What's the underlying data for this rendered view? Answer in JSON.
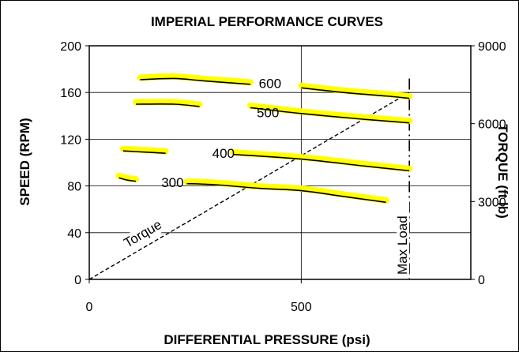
{
  "chart_data": {
    "type": "line",
    "title": "IMPERIAL PERFORMANCE CURVES",
    "xlabel": "DIFFERENTIAL PRESSURE (psi)",
    "ylabel": "SPEED (RPM)",
    "y2label": "TORQUE (ft lb)",
    "xlim": [
      0,
      900
    ],
    "ylim": [
      0,
      200
    ],
    "y2lim": [
      0,
      9000
    ],
    "x_ticks": [
      "0",
      "500"
    ],
    "x_tick_values": [
      0,
      500
    ],
    "y_ticks": [
      "0",
      "40",
      "80",
      "120",
      "160",
      "200"
    ],
    "y_tick_values": [
      0,
      40,
      80,
      120,
      160,
      200
    ],
    "y2_ticks": [
      "0",
      "3000",
      "6000",
      "9000"
    ],
    "y2_tick_values": [
      0,
      3000,
      6000,
      9000
    ],
    "grid": true,
    "series": [
      {
        "name": "600",
        "label_at": [
          400,
          168
        ],
        "segments": [
          [
            [
              120,
              171
            ],
            [
              200,
              172
            ],
            [
              270,
              170
            ],
            [
              380,
              167
            ]
          ],
          [
            [
              500,
              164
            ],
            [
              600,
              160
            ],
            [
              700,
              157
            ],
            [
              755,
              155
            ]
          ]
        ]
      },
      {
        "name": "500",
        "label_at": [
          395,
          143
        ],
        "segments": [
          [
            [
              110,
              150
            ],
            [
              200,
              150
            ],
            [
              260,
              148
            ]
          ],
          [
            [
              380,
              147
            ],
            [
              500,
              142
            ],
            [
              650,
              137
            ],
            [
              755,
              134
            ]
          ]
        ]
      },
      {
        "name": "400",
        "label_at": [
          290,
          108
        ],
        "segments": [
          [
            [
              80,
              110
            ],
            [
              130,
              109
            ],
            [
              180,
              108
            ]
          ],
          [
            [
              340,
              107
            ],
            [
              500,
              103
            ],
            [
              650,
              97
            ],
            [
              755,
              93
            ]
          ]
        ]
      },
      {
        "name": "300",
        "label_at": [
          170,
          83
        ],
        "segments": [
          [
            [
              70,
              87
            ],
            [
              90,
              85
            ],
            [
              110,
              84
            ]
          ],
          [
            [
              230,
              82
            ],
            [
              300,
              81
            ],
            [
              400,
              78
            ],
            [
              500,
              76
            ],
            [
              600,
              71
            ],
            [
              700,
              66
            ]
          ]
        ]
      }
    ],
    "torque_line": {
      "name": "Torque",
      "x": [
        0,
        755
      ],
      "y": [
        0,
        7200
      ]
    },
    "max_load": {
      "name": "Max Load",
      "x": 755
    },
    "annotations": [
      "600",
      "500",
      "400",
      "300",
      "Torque",
      "Max Load"
    ]
  }
}
